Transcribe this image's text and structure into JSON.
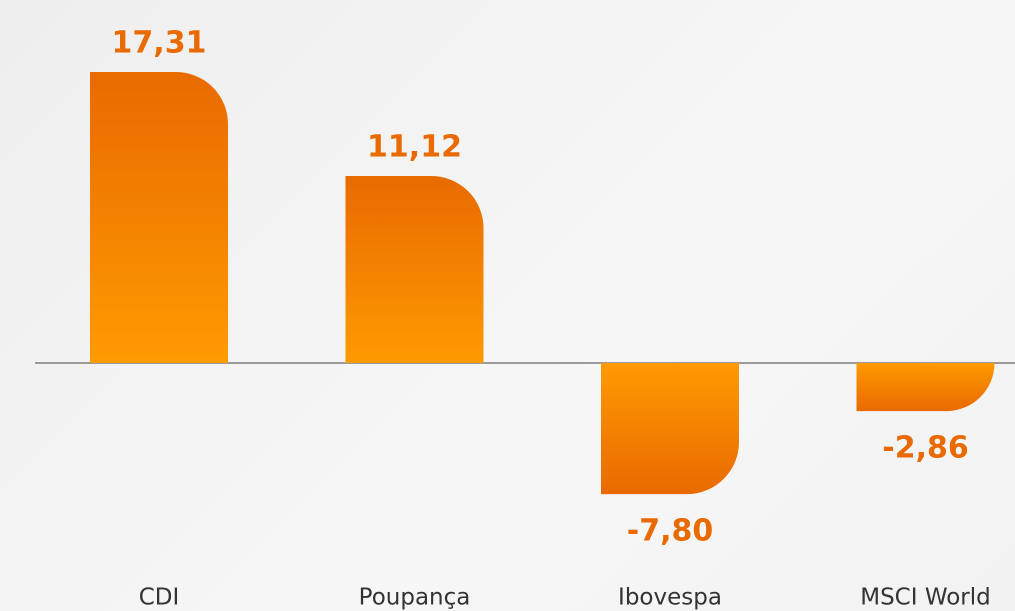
{
  "chart_data": {
    "type": "bar",
    "categories": [
      "CDI",
      "Poupança",
      "Ibovespa",
      "MSCI World"
    ],
    "values": [
      17.31,
      11.12,
      -7.8,
      -2.86
    ],
    "value_labels": [
      "17,31",
      "11,12",
      "-7,80",
      "-2,86"
    ],
    "color": "#f08000"
  }
}
